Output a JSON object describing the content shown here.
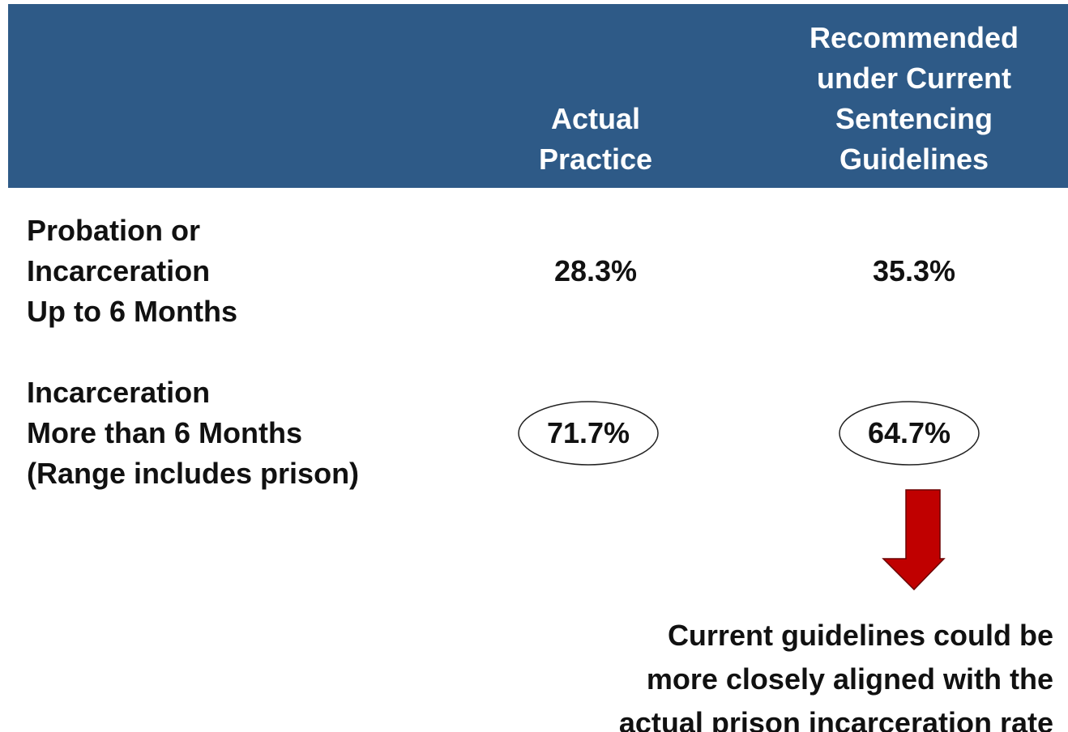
{
  "table": {
    "header": [
      [
        "Actual",
        "Practice"
      ],
      [
        "Recommended",
        "under Current",
        "Sentencing",
        "Guidelines"
      ]
    ],
    "rows": [
      {
        "label": [
          "Probation or",
          "Incarceration",
          "Up to 6 Months"
        ],
        "values": [
          "28.3%",
          "35.3%"
        ]
      },
      {
        "label": [
          "Incarceration",
          "More than 6 Months",
          "(Range includes prison)"
        ],
        "values": [
          "71.7%",
          "64.7%"
        ]
      }
    ]
  },
  "note": [
    "Current guidelines could be",
    "more closely aligned with the",
    "actual prison incarceration rate"
  ]
}
